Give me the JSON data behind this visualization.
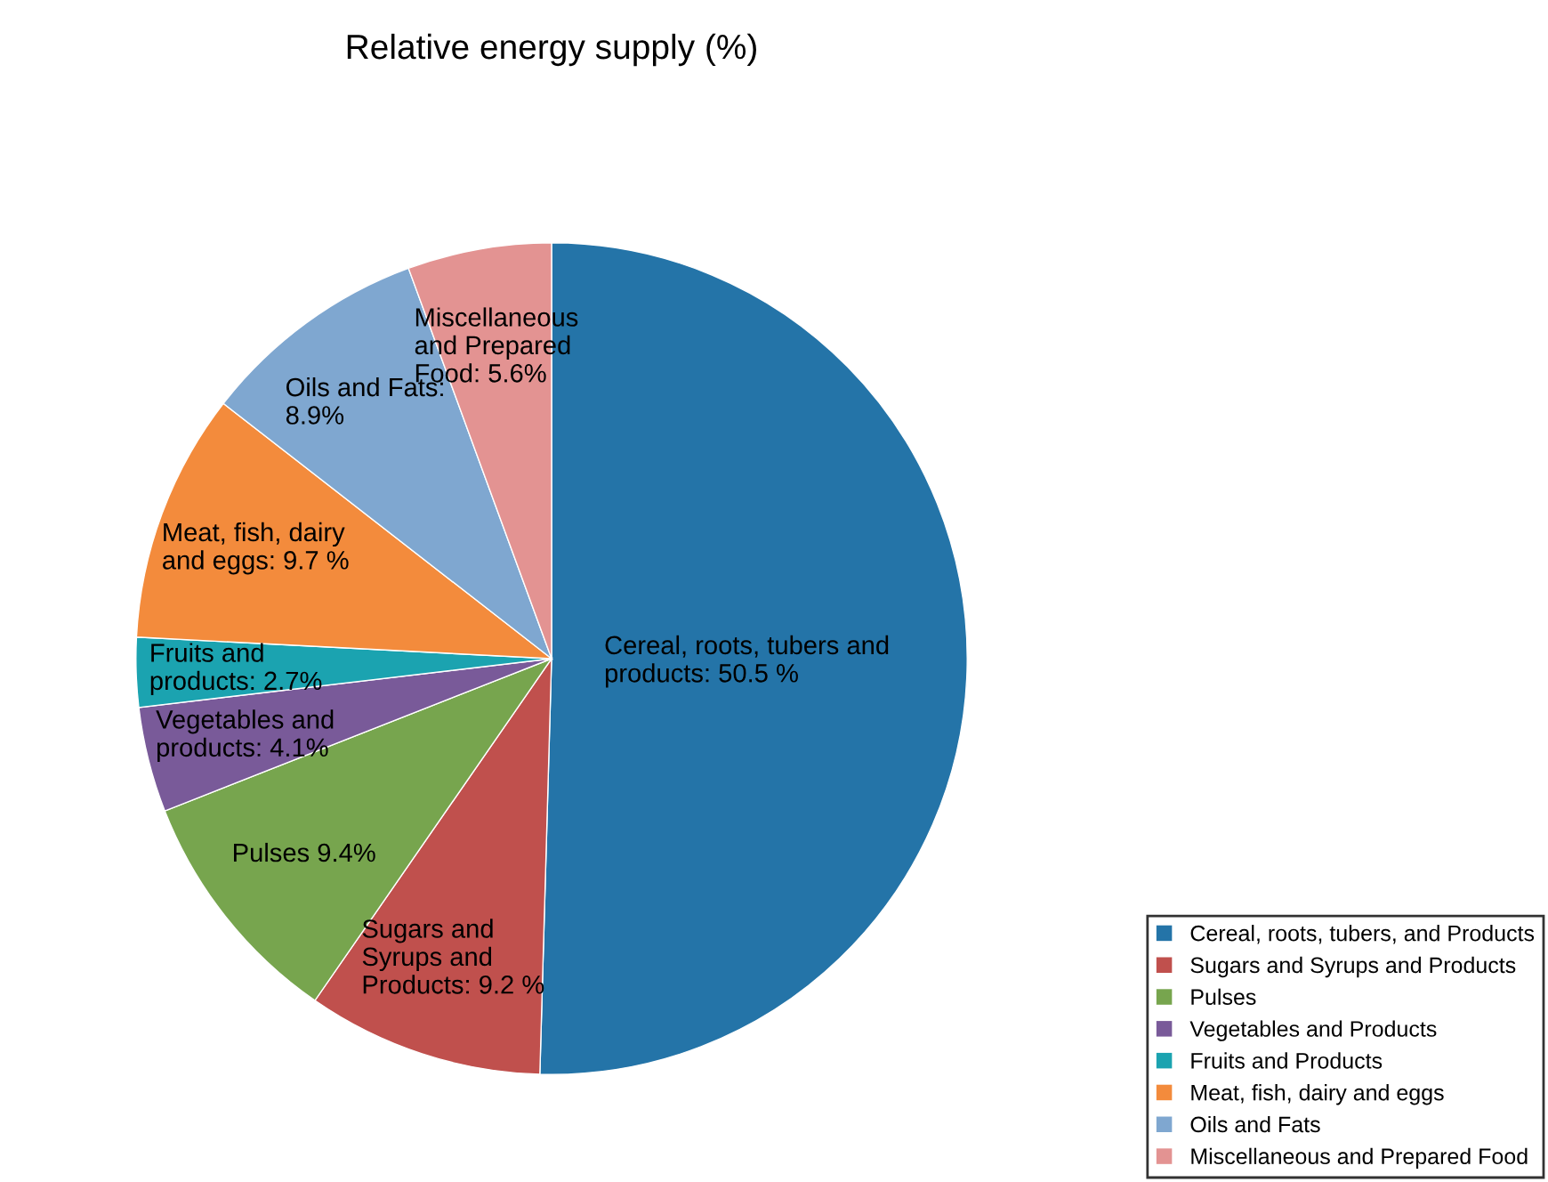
{
  "chart_data": {
    "type": "pie",
    "title": "Relative energy supply (%)",
    "categories": [
      "Cereal, roots, tubers, and Products",
      "Sugars and Syrups and Products",
      "Pulses",
      "Vegetables and Products",
      "Fruits and Products",
      "Meat, fish, dairy and eggs",
      "Oils and Fats",
      "Miscellaneous and Prepared Food"
    ],
    "values": [
      50.5,
      9.2,
      9.4,
      4.1,
      2.7,
      9.7,
      8.9,
      5.6
    ],
    "value_labels": [
      "Cereal, roots, tubers and\nproducts: 50.5 %",
      "Sugars and\nSyrups and\nProducts: 9.2 %",
      "Pulses 9.4%",
      "Vegetables and\nproducts: 4.1%",
      "Fruits and\nproducts: 2.7%",
      "Meat, fish, dairy\nand eggs: 9.7 %",
      "Oils and Fats:\n8.9%",
      "Miscellaneous\nand Prepared\nFood: 5.6%"
    ],
    "colors": [
      "#2474a8",
      "#c0504d",
      "#77a54e",
      "#795a99",
      "#1ba3b0",
      "#f38b3c",
      "#7fa7d0",
      "#e39392"
    ],
    "legend": "bottom right"
  }
}
